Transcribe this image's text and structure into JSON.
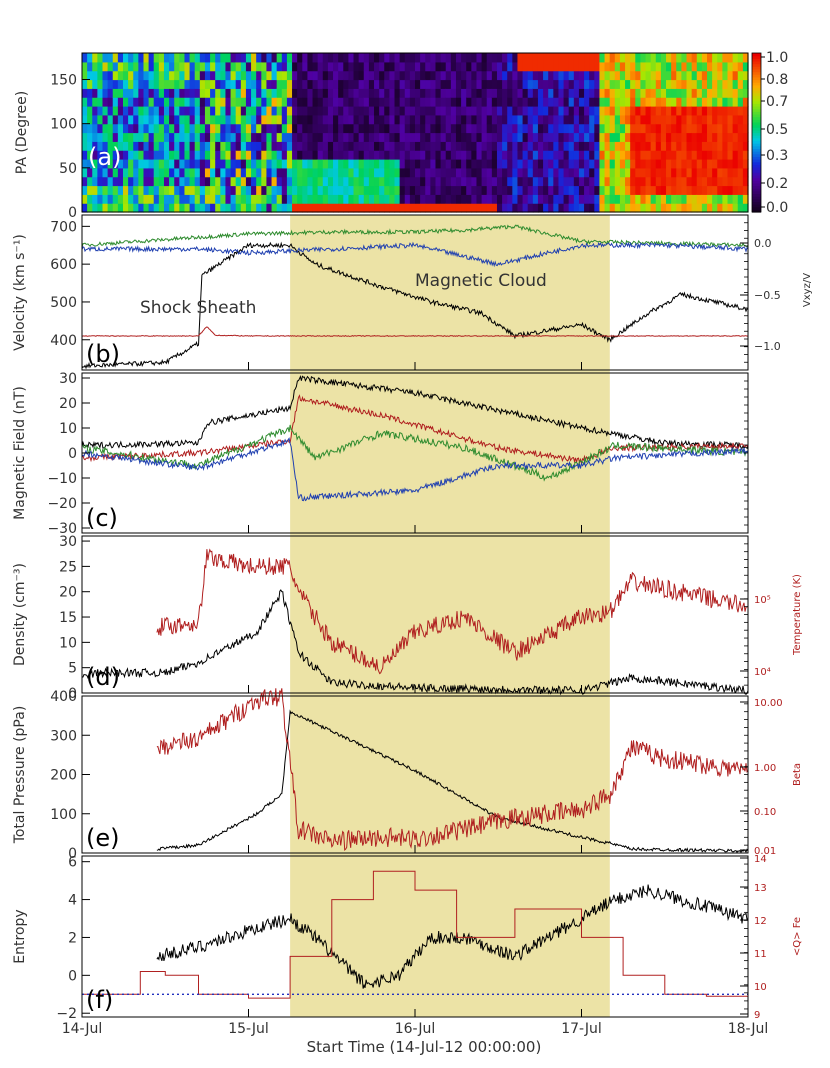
{
  "figure": {
    "xlabel": "Start Time (14-Jul-12 00:00:00)",
    "xtick_labels": [
      "14-Jul",
      "15-Jul",
      "16-Jul",
      "17-Jul",
      "18-Jul"
    ],
    "shading": {
      "start_day": 15.25,
      "end_day": 17.17,
      "color": "#ece3a6"
    },
    "colorbar": {
      "ticks": [
        "1.0",
        "0.8",
        "0.7",
        "0.5",
        "0.3",
        "0.2",
        "0.0"
      ]
    }
  },
  "chart_data": [
    {
      "id": "a",
      "type": "heatmap",
      "panel_label": "(a)",
      "ylabel": "PA (Degree)",
      "ylim": [
        0,
        180
      ],
      "yticks": [
        "0",
        "50",
        "100",
        "150"
      ],
      "colorbar_range": [
        0,
        1
      ]
    },
    {
      "id": "b",
      "type": "line",
      "panel_label": "(b)",
      "ylabel": "Velocity (km s⁻¹)",
      "ylim": [
        320,
        730
      ],
      "yticks": [
        "400",
        "500",
        "600",
        "700"
      ],
      "right_label": "Vxyz/V",
      "right_ticks": [
        "0.0",
        "−0.5",
        "−1.0"
      ],
      "annotations": [
        "Shock Sheath",
        "Magnetic Cloud"
      ],
      "series": [
        {
          "color": "#000000",
          "x": [
            14.0,
            14.5,
            14.7,
            14.72,
            15.0,
            15.25,
            15.4,
            15.8,
            16.1,
            16.4,
            16.6,
            17.0,
            17.17,
            17.4,
            17.6,
            18.0
          ],
          "y": [
            330,
            340,
            390,
            570,
            650,
            650,
            600,
            540,
            500,
            470,
            410,
            440,
            400,
            470,
            520,
            480
          ]
        },
        {
          "color": "#2e8b2e",
          "x": [
            14.0,
            15.0,
            15.5,
            16.0,
            16.3,
            16.6,
            17.0,
            17.5,
            18.0
          ],
          "y": [
            650,
            680,
            685,
            685,
            690,
            700,
            660,
            655,
            650
          ]
        },
        {
          "color": "#2040b0",
          "x": [
            14.0,
            14.7,
            15.0,
            15.25,
            15.5,
            16.0,
            16.5,
            17.0,
            17.5,
            18.0
          ],
          "y": [
            640,
            640,
            630,
            635,
            640,
            650,
            600,
            650,
            650,
            640
          ]
        },
        {
          "color": "#b02020",
          "x": [
            14.0,
            14.7,
            14.75,
            14.8,
            15.0,
            18.0
          ],
          "y": [
            410,
            410,
            435,
            412,
            410,
            410
          ]
        }
      ]
    },
    {
      "id": "c",
      "type": "line",
      "panel_label": "(c)",
      "ylabel": "Magnetic Field (nT)",
      "ylim": [
        -32,
        32
      ],
      "yticks": [
        "30",
        "20",
        "10",
        "0",
        "−10",
        "−20",
        "−30"
      ],
      "series": [
        {
          "color": "#000000",
          "x": [
            14.0,
            14.7,
            14.75,
            15.25,
            15.3,
            16.0,
            17.0,
            17.17,
            17.5,
            18.0
          ],
          "y": [
            3,
            4,
            12,
            18,
            30,
            24,
            10,
            8,
            4,
            3
          ]
        },
        {
          "color": "#b02020",
          "x": [
            14.0,
            14.7,
            15.25,
            15.3,
            15.8,
            16.5,
            17.0,
            17.2,
            18.0
          ],
          "y": [
            -2,
            0,
            5,
            22,
            15,
            2,
            -3,
            2,
            3
          ]
        },
        {
          "color": "#2e8b2e",
          "x": [
            14.0,
            14.7,
            15.25,
            15.4,
            15.8,
            16.3,
            16.8,
            17.2,
            18.0
          ],
          "y": [
            2,
            -5,
            10,
            -2,
            8,
            2,
            -10,
            3,
            0
          ]
        },
        {
          "color": "#2040b0",
          "x": [
            14.0,
            14.7,
            15.25,
            15.3,
            16.0,
            16.5,
            17.0,
            17.2,
            18.0
          ],
          "y": [
            0,
            -6,
            5,
            -18,
            -15,
            -5,
            -5,
            -2,
            1
          ]
        }
      ]
    },
    {
      "id": "d",
      "type": "line",
      "panel_label": "(d)",
      "ylabel": "Density (cm⁻³)",
      "ylim": [
        0,
        31
      ],
      "yticks": [
        "0",
        "5",
        "10",
        "15",
        "20",
        "25",
        "30"
      ],
      "right_label": "Temperature (K)",
      "right_ticks": [
        "10⁵",
        "10⁴"
      ],
      "series": [
        {
          "color": "#000000",
          "x": [
            14.0,
            14.1,
            14.5,
            14.6,
            14.7,
            15.05,
            15.2,
            15.3,
            15.5,
            16.0,
            17.0,
            17.3,
            18.0
          ],
          "y": [
            3,
            4,
            4,
            5,
            6,
            12,
            20,
            8,
            2,
            1,
            0.5,
            3,
            0.5
          ]
        },
        {
          "color": "#b02020",
          "x": [
            14.45,
            14.7,
            14.75,
            15.0,
            15.25,
            15.3,
            15.5,
            15.8,
            16.0,
            16.3,
            16.6,
            17.0,
            17.17,
            17.3,
            18.0
          ],
          "y": [
            13,
            14,
            27,
            25,
            25,
            20,
            10,
            5,
            12,
            15,
            8,
            15,
            16,
            22,
            17
          ]
        }
      ]
    },
    {
      "id": "e",
      "type": "line",
      "panel_label": "(e)",
      "ylabel": "Total Pressure (pPa)",
      "ylim": [
        0,
        400
      ],
      "yticks": [
        "0",
        "100",
        "200",
        "300",
        "400"
      ],
      "right_label": "Beta",
      "right_ticks": [
        "10.00",
        "1.00",
        "0.10",
        "0.01"
      ],
      "series": [
        {
          "color": "#000000",
          "x": [
            14.45,
            14.7,
            15.05,
            15.2,
            15.25,
            15.5,
            16.0,
            16.5,
            17.0,
            17.17,
            17.3,
            18.0
          ],
          "y": [
            10,
            20,
            100,
            150,
            360,
            310,
            210,
            90,
            40,
            25,
            10,
            5
          ]
        },
        {
          "color": "#b02020",
          "x": [
            14.45,
            14.7,
            15.05,
            15.2,
            15.3,
            15.5,
            15.8,
            16.0,
            16.3,
            16.6,
            17.0,
            17.17,
            17.3,
            17.5,
            18.0
          ],
          "y": [
            270,
            290,
            390,
            400,
            60,
            30,
            40,
            35,
            60,
            90,
            110,
            150,
            270,
            240,
            210
          ]
        }
      ]
    },
    {
      "id": "f",
      "type": "line",
      "panel_label": "(f)",
      "ylabel": "Entropy",
      "ylim": [
        -2.2,
        6.3
      ],
      "yticks": [
        "−2",
        "0",
        "2",
        "4",
        "6"
      ],
      "right_label": "<Q> Fe",
      "right_ticks": [
        "9",
        "10",
        "11",
        "12",
        "13",
        "14"
      ],
      "series": [
        {
          "color": "#000000",
          "x": [
            14.45,
            14.7,
            15.05,
            15.25,
            15.4,
            15.7,
            15.9,
            16.1,
            16.3,
            16.6,
            17.0,
            17.2,
            17.4,
            17.6,
            18.0
          ],
          "y": [
            1,
            1.5,
            2.5,
            3,
            2,
            -0.5,
            0,
            2,
            2,
            1,
            3,
            4,
            4.5,
            4,
            3
          ]
        },
        {
          "color": "#b02020",
          "x": [
            14.0,
            14.35,
            14.5,
            14.7,
            15.0,
            15.25,
            15.5,
            15.75,
            16.0,
            16.25,
            16.6,
            17.0,
            17.25,
            17.5,
            17.75,
            18.0
          ],
          "y": [
            -1,
            0.2,
            0,
            -1,
            -1.2,
            1,
            4,
            5.5,
            4.5,
            2,
            3.5,
            2,
            0,
            -1,
            -1.1,
            -0.8
          ]
        },
        {
          "color": "#2030c0",
          "x": [
            14.0,
            18.0
          ],
          "y": [
            -1,
            -1
          ]
        }
      ]
    }
  ]
}
